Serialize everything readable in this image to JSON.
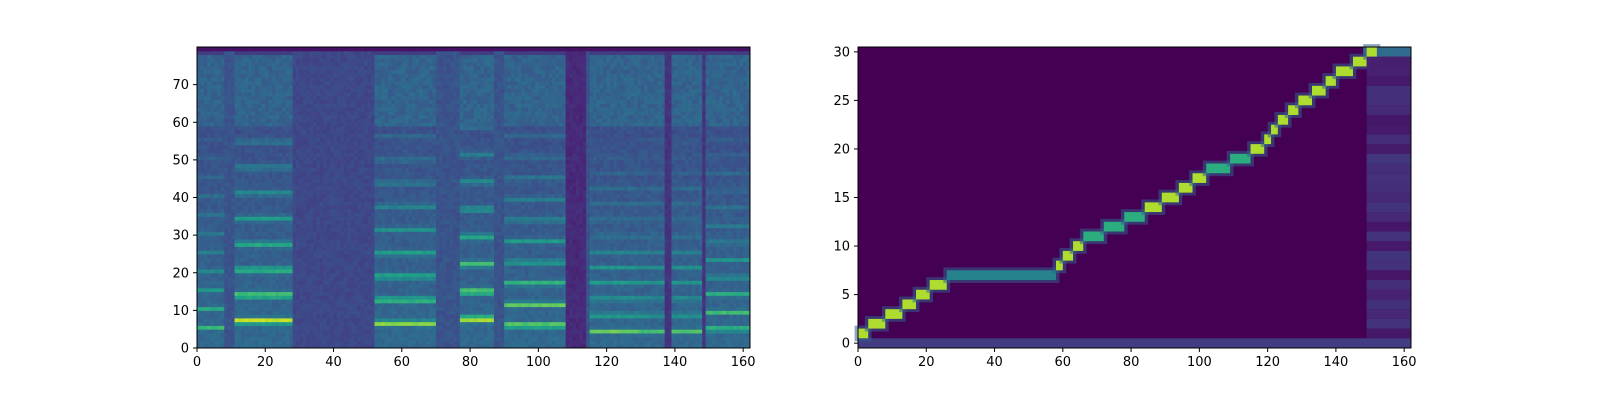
{
  "chart_data": [
    {
      "type": "heatmap",
      "title": "",
      "xlabel": "",
      "ylabel": "",
      "xlim": [
        0,
        162
      ],
      "ylim": [
        0,
        80
      ],
      "xticks": [
        0,
        20,
        40,
        60,
        80,
        100,
        120,
        140,
        160
      ],
      "yticks": [
        0,
        10,
        20,
        30,
        40,
        50,
        60,
        70
      ],
      "colormap": "viridis",
      "colorbar": false,
      "grid": false,
      "voiced_segments": [
        {
          "start": 0,
          "end": 8,
          "f0_bin": 5,
          "strength": 0.55
        },
        {
          "start": 11,
          "end": 28,
          "f0_bin": 6.8,
          "strength": 1.0
        },
        {
          "start": 52,
          "end": 70,
          "f0_bin": 6.2,
          "strength": 0.85
        },
        {
          "start": 77,
          "end": 87,
          "f0_bin": 7.3,
          "strength": 1.0
        },
        {
          "start": 90,
          "end": 108,
          "f0_bin": 5.6,
          "strength": 0.95
        },
        {
          "start": 115,
          "end": 129,
          "f0_bin": 4.2,
          "strength": 0.85
        },
        {
          "start": 129,
          "end": 137,
          "f0_bin": 4.2,
          "strength": 0.7
        },
        {
          "start": 139,
          "end": 148,
          "f0_bin": 4.2,
          "strength": 0.75
        },
        {
          "start": 149,
          "end": 162,
          "f0_bin": 4.6,
          "strength": 0.85
        }
      ],
      "silent_gaps": [
        {
          "start": 28,
          "end": 52,
          "level": 0.22
        },
        {
          "start": 108,
          "end": 114,
          "level": 0.12
        },
        {
          "start": 137,
          "end": 139,
          "level": 0.15
        },
        {
          "start": 148,
          "end": 149,
          "level": 0.15
        }
      ]
    },
    {
      "type": "heatmap",
      "title": "",
      "xlabel": "",
      "ylabel": "",
      "xlim": [
        0,
        162
      ],
      "ylim": [
        -0.5,
        30.5
      ],
      "xticks": [
        0,
        20,
        40,
        60,
        80,
        100,
        120,
        140,
        160
      ],
      "yticks": [
        0,
        5,
        10,
        15,
        20,
        25,
        30
      ],
      "colormap": "viridis",
      "colorbar": false,
      "grid": false,
      "alignment_path": [
        {
          "x": 0,
          "y": 1
        },
        {
          "x": 3,
          "y": 2
        },
        {
          "x": 8,
          "y": 3
        },
        {
          "x": 13,
          "y": 4
        },
        {
          "x": 17,
          "y": 5
        },
        {
          "x": 21,
          "y": 6
        },
        {
          "x": 26,
          "y": 7
        },
        {
          "x": 58,
          "y": 8
        },
        {
          "x": 60,
          "y": 9
        },
        {
          "x": 63,
          "y": 10
        },
        {
          "x": 66,
          "y": 11
        },
        {
          "x": 72,
          "y": 12
        },
        {
          "x": 78,
          "y": 13
        },
        {
          "x": 84,
          "y": 14
        },
        {
          "x": 89,
          "y": 15
        },
        {
          "x": 94,
          "y": 16
        },
        {
          "x": 98,
          "y": 17
        },
        {
          "x": 102,
          "y": 18
        },
        {
          "x": 109,
          "y": 19
        },
        {
          "x": 115,
          "y": 20
        },
        {
          "x": 119,
          "y": 21
        },
        {
          "x": 121,
          "y": 22
        },
        {
          "x": 123,
          "y": 23
        },
        {
          "x": 126,
          "y": 24
        },
        {
          "x": 129,
          "y": 25
        },
        {
          "x": 133,
          "y": 26
        },
        {
          "x": 137,
          "y": 27
        },
        {
          "x": 140,
          "y": 28
        },
        {
          "x": 145,
          "y": 29
        },
        {
          "x": 149,
          "y": 30
        }
      ],
      "end_of_sequence_row": {
        "y": 30,
        "from": 148,
        "to": 162
      },
      "bottom_row": {
        "y": 0,
        "from": 0,
        "to": 162
      }
    }
  ]
}
